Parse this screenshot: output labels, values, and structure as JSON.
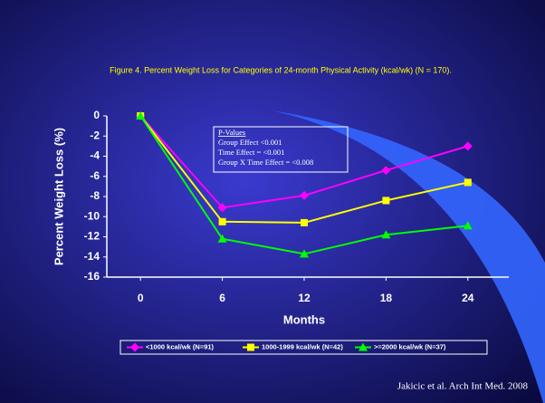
{
  "chart_data": {
    "type": "line",
    "title": "Figure 4.  Percent Weight Loss for Categories of 24-month Physical Activity (kcal/wk) (N = 170).",
    "x_label": "Months",
    "y_label": "Percent Weight Loss (%)",
    "x": [
      0,
      6,
      12,
      18,
      24
    ],
    "xlim": [
      -3,
      27
    ],
    "xticks": [
      0,
      6,
      12,
      18,
      24
    ],
    "ylim": [
      -16,
      0
    ],
    "yticks": [
      0,
      -2,
      -4,
      -6,
      -8,
      -10,
      -12,
      -14,
      -16
    ],
    "legend": "bottom",
    "series": [
      {
        "name": "<1000 kcal/wk (N=91)",
        "color": "#ff00ff",
        "marker": "diamond",
        "values": [
          0,
          -9.1,
          -7.9,
          -5.4,
          -3.0
        ]
      },
      {
        "name": "1000-1999 kcal/wk (N=42)",
        "color": "#ffff00",
        "marker": "square",
        "values": [
          0,
          -10.5,
          -10.6,
          -8.4,
          -6.6
        ]
      },
      {
        "name": ">=2000 kcal/wk (N=37)",
        "color": "#00ff00",
        "marker": "triangle",
        "values": [
          0,
          -12.2,
          -13.7,
          -11.8,
          -10.9
        ]
      }
    ],
    "annotation": {
      "title": "P-Values",
      "lines": [
        "Group Effect <0.001",
        "Time Effect = <0.001",
        "Group X Time Effect = <0.008"
      ]
    },
    "source": "Jakicic et al. Arch Int Med. 2008"
  }
}
